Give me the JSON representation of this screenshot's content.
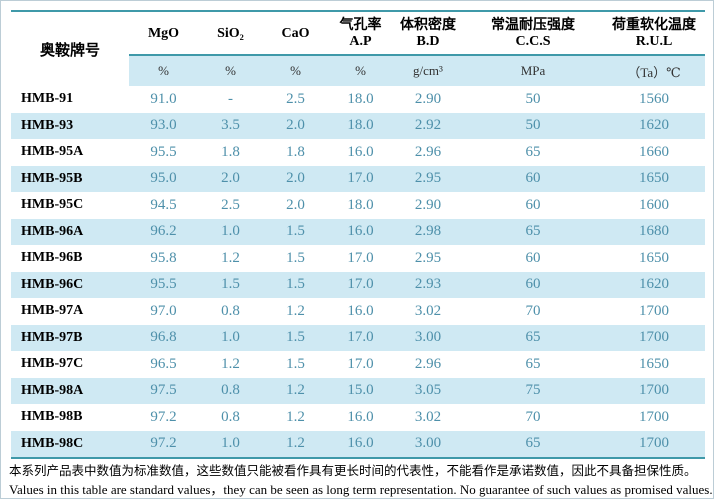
{
  "chart_data": {
    "type": "table",
    "brand_header": "奥鞍牌号",
    "columns": [
      {
        "label": "MgO",
        "abbr": "",
        "unit": "%"
      },
      {
        "label": "SiO₂",
        "abbr": "",
        "unit": "%"
      },
      {
        "label": "CaO",
        "abbr": "",
        "unit": "%"
      },
      {
        "label": "气孔率",
        "abbr": "A.P",
        "unit": "%"
      },
      {
        "label": "体积密度",
        "abbr": "B.D",
        "unit": "g/cm³"
      },
      {
        "label": "常温耐压强度",
        "abbr": "C.C.S",
        "unit": "MPa"
      },
      {
        "label": "荷重软化温度",
        "abbr": "R.U.L",
        "unit": "（Ta）℃"
      }
    ],
    "rows": [
      {
        "brand": "HMB-91",
        "values": [
          "91.0",
          "-",
          "2.5",
          "18.0",
          "2.90",
          "50",
          "1560"
        ]
      },
      {
        "brand": "HMB-93",
        "values": [
          "93.0",
          "3.5",
          "2.0",
          "18.0",
          "2.92",
          "50",
          "1620"
        ]
      },
      {
        "brand": "HMB-95A",
        "values": [
          "95.5",
          "1.8",
          "1.8",
          "16.0",
          "2.96",
          "65",
          "1660"
        ]
      },
      {
        "brand": "HMB-95B",
        "values": [
          "95.0",
          "2.0",
          "2.0",
          "17.0",
          "2.95",
          "60",
          "1650"
        ]
      },
      {
        "brand": "HMB-95C",
        "values": [
          "94.5",
          "2.5",
          "2.0",
          "18.0",
          "2.90",
          "60",
          "1600"
        ]
      },
      {
        "brand": "HMB-96A",
        "values": [
          "96.2",
          "1.0",
          "1.5",
          "16.0",
          "2.98",
          "65",
          "1680"
        ]
      },
      {
        "brand": "HMB-96B",
        "values": [
          "95.8",
          "1.2",
          "1.5",
          "17.0",
          "2.95",
          "60",
          "1650"
        ]
      },
      {
        "brand": "HMB-96C",
        "values": [
          "95.5",
          "1.5",
          "1.5",
          "17.0",
          "2.93",
          "60",
          "1620"
        ]
      },
      {
        "brand": "HMB-97A",
        "values": [
          "97.0",
          "0.8",
          "1.2",
          "16.0",
          "3.02",
          "70",
          "1700"
        ]
      },
      {
        "brand": "HMB-97B",
        "values": [
          "96.8",
          "1.0",
          "1.5",
          "17.0",
          "3.00",
          "65",
          "1700"
        ]
      },
      {
        "brand": "HMB-97C",
        "values": [
          "96.5",
          "1.2",
          "1.5",
          "17.0",
          "2.96",
          "65",
          "1650"
        ]
      },
      {
        "brand": "HMB-98A",
        "values": [
          "97.5",
          "0.8",
          "1.2",
          "15.0",
          "3.05",
          "75",
          "1700"
        ]
      },
      {
        "brand": "HMB-98B",
        "values": [
          "97.2",
          "0.8",
          "1.2",
          "16.0",
          "3.02",
          "70",
          "1700"
        ]
      },
      {
        "brand": "HMB-98C",
        "values": [
          "97.2",
          "1.0",
          "1.2",
          "16.0",
          "3.00",
          "65",
          "1700"
        ]
      }
    ]
  },
  "footer": {
    "zh": "本系列产品表中数值为标准数值，这些数值只能被看作具有更长时间的代表性，不能看作是承诺数值，因此不具备担保性质。",
    "en": "Values in this table are standard values，they can be seen as long term representation. No guarantee of such values as promised values."
  },
  "colors": {
    "accent_line": "#3f99a9",
    "band_blue": "#cfe9f3",
    "value_text": "#4e90aa"
  }
}
